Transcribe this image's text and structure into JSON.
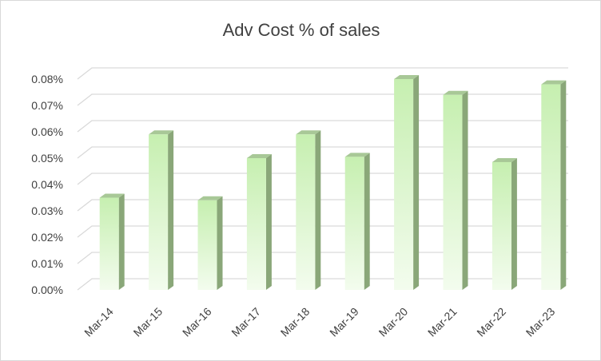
{
  "chart_data": {
    "type": "bar",
    "title": "Adv Cost % of sales",
    "xlabel": "",
    "ylabel": "",
    "categories": [
      "Mar-14",
      "Mar-15",
      "Mar-16",
      "Mar-17",
      "Mar-18",
      "Mar-19",
      "Mar-20",
      "Mar-21",
      "Mar-22",
      "Mar-23"
    ],
    "values": [
      0.035,
      0.059,
      0.034,
      0.05,
      0.059,
      0.0505,
      0.08,
      0.074,
      0.0485,
      0.078
    ],
    "yticks": [
      "0.00%",
      "0.01%",
      "0.02%",
      "0.03%",
      "0.04%",
      "0.05%",
      "0.06%",
      "0.07%",
      "0.08%"
    ],
    "ylim": [
      0,
      0.08
    ],
    "grid": true,
    "legend": "none",
    "colors": {
      "bar_top": "#c6efb0",
      "bar_bottom": "#f3fcee",
      "bar_side": "#8aa779",
      "bar_cap": "#a8c897",
      "grid": "#d9d9d9"
    }
  }
}
